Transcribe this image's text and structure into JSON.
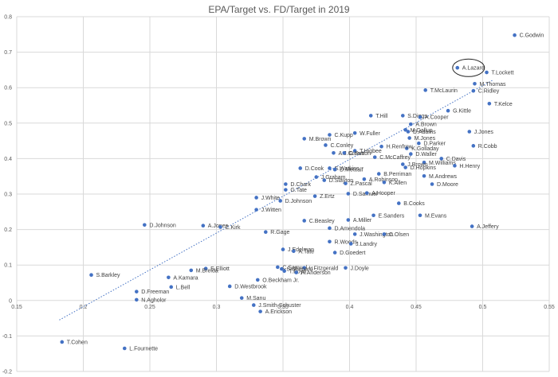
{
  "chart_data": {
    "type": "scatter",
    "title": "EPA/Target vs. FD/Target in 2019",
    "xlabel": "",
    "ylabel": "",
    "xlim": [
      0.15,
      0.55
    ],
    "ylim": [
      -0.2,
      0.8
    ],
    "x_ticks": [
      "0.15",
      "0.2",
      "0.25",
      "0.3",
      "0.35",
      "0.4",
      "0.45",
      "0.5",
      "0.55"
    ],
    "y_ticks": [
      "0.8",
      "0.7",
      "0.6",
      "0.5",
      "0.4",
      "0.3",
      "0.2",
      "0.1",
      "0",
      "-0.1",
      "-0.2"
    ],
    "grid": true,
    "legend": "none",
    "trendline": {
      "type": "linear",
      "style": "dotted",
      "from": [
        0.182,
        -0.055
      ],
      "to": [
        0.508,
        0.622
      ]
    },
    "marker_color": "#4472C4",
    "annotation": {
      "type": "ellipse",
      "target": "A.Lazard"
    },
    "points": [
      {
        "name": "C.Godwin",
        "x": 0.524,
        "y": 0.748
      },
      {
        "name": "A.Lazard",
        "x": 0.481,
        "y": 0.656
      },
      {
        "name": "T.Lockett",
        "x": 0.503,
        "y": 0.643
      },
      {
        "name": "M.Thomas",
        "x": 0.494,
        "y": 0.611
      },
      {
        "name": "C.Ridley",
        "x": 0.493,
        "y": 0.591
      },
      {
        "name": "T.McLaurin",
        "x": 0.457,
        "y": 0.593
      },
      {
        "name": "T.Kelce",
        "x": 0.505,
        "y": 0.555
      },
      {
        "name": "G.Kittle",
        "x": 0.474,
        "y": 0.535
      },
      {
        "name": "T.Hill",
        "x": 0.416,
        "y": 0.521
      },
      {
        "name": "S.Diggs",
        "x": 0.44,
        "y": 0.521
      },
      {
        "name": "A.Cooper",
        "x": 0.453,
        "y": 0.517
      },
      {
        "name": "A.Brown",
        "x": 0.446,
        "y": 0.497
      },
      {
        "name": "M.Gallup",
        "x": 0.442,
        "y": 0.481
      },
      {
        "name": "D.Adams",
        "x": 0.444,
        "y": 0.476
      },
      {
        "name": "M.Jones",
        "x": 0.445,
        "y": 0.458
      },
      {
        "name": "D.Parker",
        "x": 0.452,
        "y": 0.443
      },
      {
        "name": "K.Golladay",
        "x": 0.443,
        "y": 0.429
      },
      {
        "name": "H.Renfrow",
        "x": 0.424,
        "y": 0.434
      },
      {
        "name": "D.Waller",
        "x": 0.446,
        "y": 0.413
      },
      {
        "name": "C.Davis",
        "x": 0.469,
        "y": 0.4
      },
      {
        "name": "M.Williams",
        "x": 0.456,
        "y": 0.389
      },
      {
        "name": "J.Brown",
        "x": 0.44,
        "y": 0.384
      },
      {
        "name": "D.Hopkins",
        "x": 0.442,
        "y": 0.375
      },
      {
        "name": "H.Henry",
        "x": 0.479,
        "y": 0.38
      },
      {
        "name": "J.Jones",
        "x": 0.49,
        "y": 0.476
      },
      {
        "name": "R.Cobb",
        "x": 0.493,
        "y": 0.436
      },
      {
        "name": "M.Andrews",
        "x": 0.456,
        "y": 0.351
      },
      {
        "name": "D.Moore",
        "x": 0.462,
        "y": 0.328
      },
      {
        "name": "W.Fuller",
        "x": 0.404,
        "y": 0.472
      },
      {
        "name": "C.Kupp",
        "x": 0.385,
        "y": 0.467
      },
      {
        "name": "M.Brown",
        "x": 0.366,
        "y": 0.456
      },
      {
        "name": "C.Conley",
        "x": 0.382,
        "y": 0.438
      },
      {
        "name": "A.J.Green",
        "x": 0.388,
        "y": 0.416
      },
      {
        "name": "T.Higbee",
        "x": 0.404,
        "y": 0.422
      },
      {
        "name": "C.Sutton",
        "x": 0.396,
        "y": 0.416
      },
      {
        "name": "C.McCaffrey",
        "x": 0.419,
        "y": 0.404
      },
      {
        "name": "D.Cook",
        "x": 0.363,
        "y": 0.373
      },
      {
        "name": "S.Watkins",
        "x": 0.385,
        "y": 0.373
      },
      {
        "name": "D.Metcalf",
        "x": 0.389,
        "y": 0.369
      },
      {
        "name": "J.Graham",
        "x": 0.375,
        "y": 0.348
      },
      {
        "name": "D.Slayton",
        "x": 0.381,
        "y": 0.339
      },
      {
        "name": "Z.Pascal",
        "x": 0.397,
        "y": 0.33
      },
      {
        "name": "B.Perriman",
        "x": 0.422,
        "y": 0.357
      },
      {
        "name": "A.Robinson",
        "x": 0.411,
        "y": 0.342
      },
      {
        "name": "K.Allen",
        "x": 0.426,
        "y": 0.333
      },
      {
        "name": "D.Chark",
        "x": 0.352,
        "y": 0.328
      },
      {
        "name": "G.Tate",
        "x": 0.352,
        "y": 0.312
      },
      {
        "name": "J.White",
        "x": 0.33,
        "y": 0.29
      },
      {
        "name": "D.Johnson",
        "x": 0.348,
        "y": 0.281
      },
      {
        "name": "J.Witten",
        "x": 0.33,
        "y": 0.256
      },
      {
        "name": "Z.Ertz",
        "x": 0.374,
        "y": 0.294
      },
      {
        "name": "D.Samuel",
        "x": 0.399,
        "y": 0.301
      },
      {
        "name": "A.Hooper",
        "x": 0.413,
        "y": 0.303
      },
      {
        "name": "B.Cooks",
        "x": 0.437,
        "y": 0.274
      },
      {
        "name": "E.Sanders",
        "x": 0.418,
        "y": 0.24
      },
      {
        "name": "M.Evans",
        "x": 0.453,
        "y": 0.24
      },
      {
        "name": "A.Miller",
        "x": 0.399,
        "y": 0.227
      },
      {
        "name": "C.Beasley",
        "x": 0.366,
        "y": 0.225
      },
      {
        "name": "D.Amendola",
        "x": 0.385,
        "y": 0.204
      },
      {
        "name": "J.Washington",
        "x": 0.404,
        "y": 0.187
      },
      {
        "name": "C.Olsen",
        "x": 0.426,
        "y": 0.187
      },
      {
        "name": "A.Jeffery",
        "x": 0.492,
        "y": 0.209
      },
      {
        "name": "R.Gage",
        "x": 0.337,
        "y": 0.193
      },
      {
        "name": "R.Woods",
        "x": 0.385,
        "y": 0.166
      },
      {
        "name": "J.Landry",
        "x": 0.401,
        "y": 0.16
      },
      {
        "name": "D.Goedert",
        "x": 0.389,
        "y": 0.135
      },
      {
        "name": "J.Edelman",
        "x": 0.35,
        "y": 0.144
      },
      {
        "name": "A.Tate",
        "x": 0.358,
        "y": 0.139
      },
      {
        "name": "J.Doyle",
        "x": 0.397,
        "y": 0.092
      },
      {
        "name": "C.Samuel",
        "x": 0.346,
        "y": 0.094
      },
      {
        "name": "L.Fitzgerald",
        "x": 0.366,
        "y": 0.092
      },
      {
        "name": "S.Shepard",
        "x": 0.349,
        "y": 0.089
      },
      {
        "name": "T.Boyd",
        "x": 0.351,
        "y": 0.083
      },
      {
        "name": "R.Anderson",
        "x": 0.36,
        "y": 0.079
      },
      {
        "name": "D.Johnson",
        "x": 0.246,
        "y": 0.213
      },
      {
        "name": "A.Jones",
        "x": 0.29,
        "y": 0.211
      },
      {
        "name": "C.Kirk",
        "x": 0.303,
        "y": 0.207
      },
      {
        "name": "E.Elliott",
        "x": 0.292,
        "y": 0.09
      },
      {
        "name": "M.Breida",
        "x": 0.281,
        "y": 0.085
      },
      {
        "name": "A.Kamara",
        "x": 0.264,
        "y": 0.065
      },
      {
        "name": "L.Bell",
        "x": 0.266,
        "y": 0.038
      },
      {
        "name": "O.Beckham Jr.",
        "x": 0.331,
        "y": 0.058
      },
      {
        "name": "D.Westbrook",
        "x": 0.31,
        "y": 0.04
      },
      {
        "name": "M.Sanu",
        "x": 0.319,
        "y": 0.007
      },
      {
        "name": "J.Smith-Schuster",
        "x": 0.328,
        "y": -0.013
      },
      {
        "name": "A.Erickson",
        "x": 0.333,
        "y": -0.031
      },
      {
        "name": "S.Barkley",
        "x": 0.206,
        "y": 0.072
      },
      {
        "name": "D.Freeman",
        "x": 0.24,
        "y": 0.025
      },
      {
        "name": "N.Agholor",
        "x": 0.24,
        "y": 0.002
      },
      {
        "name": "T.Cohen",
        "x": 0.184,
        "y": -0.117
      },
      {
        "name": "L.Fournette",
        "x": 0.231,
        "y": -0.135
      }
    ]
  }
}
